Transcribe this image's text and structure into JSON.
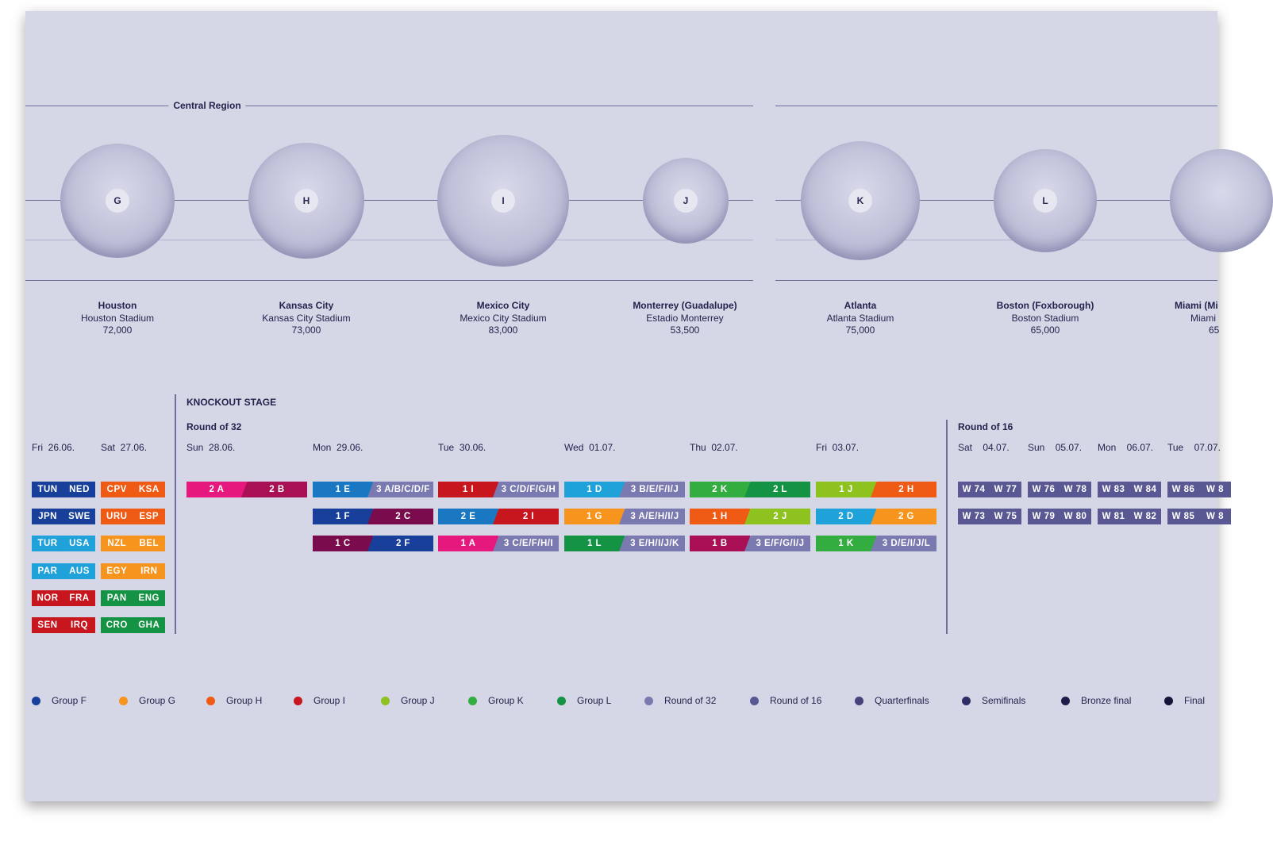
{
  "region": {
    "label": "Central Region"
  },
  "circles": [
    {
      "letter": "G",
      "city": "Houston",
      "stadium": "Houston Stadium",
      "capacity": "72,000"
    },
    {
      "letter": "H",
      "city": "Kansas City",
      "stadium": "Kansas City Stadium",
      "capacity": "73,000"
    },
    {
      "letter": "I",
      "city": "Mexico City",
      "stadium": "Mexico City Stadium",
      "capacity": "83,000"
    },
    {
      "letter": "J",
      "city": "Monterrey (Guadalupe)",
      "stadium": "Estadio Monterrey",
      "capacity": "53,500"
    },
    {
      "letter": "K",
      "city": "Atlanta",
      "stadium": "Atlanta Stadium",
      "capacity": "75,000"
    },
    {
      "letter": "L",
      "city": "Boston (Foxborough)",
      "stadium": "Boston Stadium",
      "capacity": "65,000"
    },
    {
      "letter": "",
      "city": "Miami (Mi",
      "stadium": "Miami",
      "capacity": "65"
    }
  ],
  "knockout": {
    "title": "KNOCKOUT STAGE",
    "round32_label": "Round of 32",
    "round16_label": "Round of 16"
  },
  "days": [
    "Fri  26.06.",
    "Sat  27.06.",
    "Sun  28.06.",
    "Mon  29.06.",
    "Tue  30.06.",
    "Wed  01.07.",
    "Thu  02.07.",
    "Fri  03.07.",
    "Sat    04.07.",
    "Sun    05.07.",
    "Mon    06.07.",
    "Tue    07.07."
  ],
  "colors": {
    "groupA": "#e6187e",
    "groupB": "#a80f55",
    "groupC": "#7a0b4c",
    "groupD": "#1fa1d9",
    "groupE": "#1a78c2",
    "groupF": "#18409a",
    "groupG": "#f7941d",
    "groupH": "#ef5a14",
    "groupI": "#c8161f",
    "groupJ": "#8dc21f",
    "groupK": "#33ad3f",
    "groupL": "#139343",
    "r32": "#7b7ab0",
    "r16": "#5a5892",
    "qf": "#454379",
    "sf": "#2f2d66",
    "bronze": "#1e1d4a",
    "final": "#15143a"
  },
  "matches": [
    {
      "l": "TUN",
      "lc": "groupF",
      "r": "NED",
      "rc": "groupF"
    },
    {
      "l": "JPN",
      "lc": "groupF",
      "r": "SWE",
      "rc": "groupF"
    },
    {
      "l": "TUR",
      "lc": "groupD",
      "r": "USA",
      "rc": "groupD"
    },
    {
      "l": "PAR",
      "lc": "groupD",
      "r": "AUS",
      "rc": "groupD"
    },
    {
      "l": "NOR",
      "lc": "groupI",
      "r": "FRA",
      "rc": "groupI"
    },
    {
      "l": "SEN",
      "lc": "groupI",
      "r": "IRQ",
      "rc": "groupI"
    },
    {
      "l": "CPV",
      "lc": "groupH",
      "r": "KSA",
      "rc": "groupH"
    },
    {
      "l": "URU",
      "lc": "groupH",
      "r": "ESP",
      "rc": "groupH"
    },
    {
      "l": "NZL",
      "lc": "groupG",
      "r": "BEL",
      "rc": "groupG"
    },
    {
      "l": "EGY",
      "lc": "groupG",
      "r": "IRN",
      "rc": "groupG"
    },
    {
      "l": "PAN",
      "lc": "groupL",
      "r": "ENG",
      "rc": "groupL"
    },
    {
      "l": "CRO",
      "lc": "groupL",
      "r": "GHA",
      "rc": "groupL"
    },
    {
      "l": "2 A",
      "lc": "groupA",
      "r": "2 B",
      "rc": "groupB"
    },
    {
      "l": "1 E",
      "lc": "groupE",
      "r": "3 A/B/C/D/F",
      "rc": "r32"
    },
    {
      "l": "1 F",
      "lc": "groupF",
      "r": "2 C",
      "rc": "groupC"
    },
    {
      "l": "1 C",
      "lc": "groupC",
      "r": "2 F",
      "rc": "groupF"
    },
    {
      "l": "1 I",
      "lc": "groupI",
      "r": "3 C/D/F/G/H",
      "rc": "r32"
    },
    {
      "l": "2 E",
      "lc": "groupE",
      "r": "2 I",
      "rc": "groupI"
    },
    {
      "l": "1 A",
      "lc": "groupA",
      "r": "3 C/E/F/H/I",
      "rc": "r32"
    },
    {
      "l": "1 D",
      "lc": "groupD",
      "r": "3 B/E/F/I/J",
      "rc": "r32"
    },
    {
      "l": "1 G",
      "lc": "groupG",
      "r": "3 A/E/H/I/J",
      "rc": "r32"
    },
    {
      "l": "1 L",
      "lc": "groupL",
      "r": "3 E/H/I/J/K",
      "rc": "r32"
    },
    {
      "l": "2 K",
      "lc": "groupK",
      "r": "2 L",
      "rc": "groupL"
    },
    {
      "l": "1 H",
      "lc": "groupH",
      "r": "2 J",
      "rc": "groupJ"
    },
    {
      "l": "1 B",
      "lc": "groupB",
      "r": "3 E/F/G/I/J",
      "rc": "r32"
    },
    {
      "l": "1 J",
      "lc": "groupJ",
      "r": "2 H",
      "rc": "groupH"
    },
    {
      "l": "2 D",
      "lc": "groupD",
      "r": "2 G",
      "rc": "groupG"
    },
    {
      "l": "1 K",
      "lc": "groupK",
      "r": "3 D/E/I/J/L",
      "rc": "r32"
    },
    {
      "l": "W 74",
      "lc": "r16",
      "r": "W 77",
      "rc": "r16"
    },
    {
      "l": "W 73",
      "lc": "r16",
      "r": "W 75",
      "rc": "r16"
    },
    {
      "l": "W 76",
      "lc": "r16",
      "r": "W 78",
      "rc": "r16"
    },
    {
      "l": "W 79",
      "lc": "r16",
      "r": "W 80",
      "rc": "r16"
    },
    {
      "l": "W 83",
      "lc": "r16",
      "r": "W 84",
      "rc": "r16"
    },
    {
      "l": "W 81",
      "lc": "r16",
      "r": "W 82",
      "rc": "r16"
    },
    {
      "l": "W 86",
      "lc": "r16",
      "r": "W 8",
      "rc": "r16"
    },
    {
      "l": "W 85",
      "lc": "r16",
      "r": "W 8",
      "rc": "r16"
    }
  ],
  "legend": [
    {
      "label": "Group F",
      "color": "#18409a"
    },
    {
      "label": "Group G",
      "color": "#f7941d"
    },
    {
      "label": "Group H",
      "color": "#ef5a14"
    },
    {
      "label": "Group I",
      "color": "#c8161f"
    },
    {
      "label": "Group J",
      "color": "#8dc21f"
    },
    {
      "label": "Group K",
      "color": "#33ad3f"
    },
    {
      "label": "Group L",
      "color": "#139343"
    },
    {
      "label": "Round of 32",
      "color": "#7b7ab0"
    },
    {
      "label": "Round of 16",
      "color": "#5a5892"
    },
    {
      "label": "Quarterfinals",
      "color": "#454379"
    },
    {
      "label": "Semifinals",
      "color": "#2f2d66"
    },
    {
      "label": "Bronze final",
      "color": "#1e1d4a"
    },
    {
      "label": "Final",
      "color": "#15143a"
    }
  ]
}
